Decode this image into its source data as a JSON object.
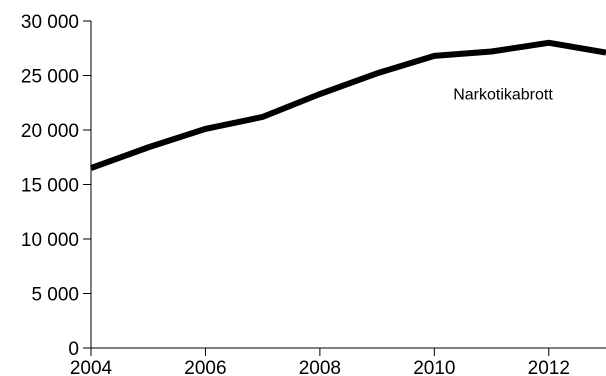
{
  "chart_data": {
    "type": "line",
    "title": "",
    "xlabel": "",
    "ylabel": "",
    "xlim": [
      2004,
      2013
    ],
    "ylim": [
      0,
      30000
    ],
    "grid": false,
    "x": [
      2004,
      2005,
      2006,
      2007,
      2008,
      2009,
      2010,
      2011,
      2012,
      2013
    ],
    "x_ticks": [
      2004,
      2006,
      2008,
      2010,
      2012
    ],
    "x_tick_labels": [
      "2004",
      "2006",
      "2008",
      "2010",
      "2012"
    ],
    "y_ticks": [
      0,
      5000,
      10000,
      15000,
      20000,
      25000,
      30000
    ],
    "y_tick_labels": [
      "0",
      "5 000",
      "10 000",
      "15 000",
      "20 000",
      "25 000",
      "30 000"
    ],
    "series": [
      {
        "name": "Narkotikabrott",
        "values": [
          16500,
          18400,
          20100,
          21200,
          23300,
          25200,
          26800,
          27200,
          28000,
          27100
        ],
        "color": "#000000"
      }
    ]
  }
}
